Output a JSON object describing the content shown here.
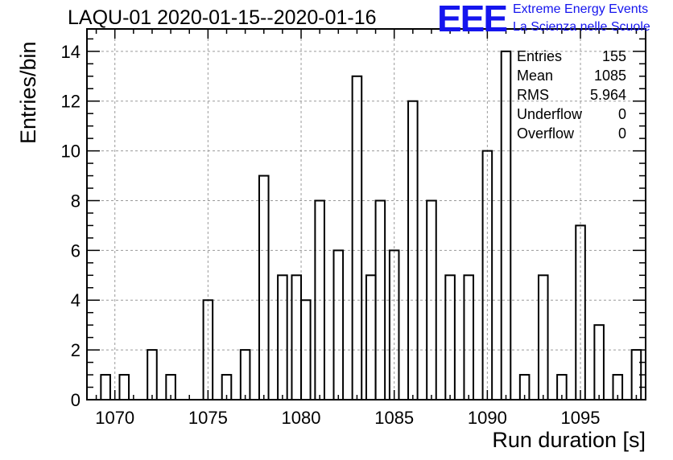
{
  "chart_data": {
    "type": "bar",
    "title": "LAQU-01 2020-01-15--2020-01-16",
    "xlabel": "Run duration [s]",
    "ylabel": "Entries/bin",
    "xlim": [
      1068.5,
      1098.5
    ],
    "ylim": [
      0,
      14.9
    ],
    "bin_width": 0.5,
    "grid": true,
    "x_ticks": [
      1070,
      1075,
      1080,
      1085,
      1090,
      1095
    ],
    "y_ticks": [
      0,
      2,
      4,
      6,
      8,
      10,
      12,
      14
    ],
    "bins": [
      {
        "x": 1069.5,
        "count": 1
      },
      {
        "x": 1070.5,
        "count": 1
      },
      {
        "x": 1072.0,
        "count": 2
      },
      {
        "x": 1073.0,
        "count": 1
      },
      {
        "x": 1075.0,
        "count": 4
      },
      {
        "x": 1076.0,
        "count": 1
      },
      {
        "x": 1077.0,
        "count": 2
      },
      {
        "x": 1078.0,
        "count": 9
      },
      {
        "x": 1079.0,
        "count": 5
      },
      {
        "x": 1079.75,
        "count": 5
      },
      {
        "x": 1080.25,
        "count": 4
      },
      {
        "x": 1081.0,
        "count": 8
      },
      {
        "x": 1082.0,
        "count": 6
      },
      {
        "x": 1083.0,
        "count": 13
      },
      {
        "x": 1083.75,
        "count": 5
      },
      {
        "x": 1084.25,
        "count": 8
      },
      {
        "x": 1085.0,
        "count": 6
      },
      {
        "x": 1086.0,
        "count": 12
      },
      {
        "x": 1087.0,
        "count": 8
      },
      {
        "x": 1088.0,
        "count": 5
      },
      {
        "x": 1089.0,
        "count": 5
      },
      {
        "x": 1090.0,
        "count": 10
      },
      {
        "x": 1091.0,
        "count": 14
      },
      {
        "x": 1092.0,
        "count": 1
      },
      {
        "x": 1093.0,
        "count": 5
      },
      {
        "x": 1094.0,
        "count": 1
      },
      {
        "x": 1095.0,
        "count": 7
      },
      {
        "x": 1096.0,
        "count": 3
      },
      {
        "x": 1097.0,
        "count": 1
      },
      {
        "x": 1098.0,
        "count": 2
      }
    ],
    "stats": [
      {
        "label": "Entries",
        "value": "155"
      },
      {
        "label": "Mean",
        "value": "1085"
      },
      {
        "label": "RMS",
        "value": "5.964"
      },
      {
        "label": "Underflow",
        "value": "0"
      },
      {
        "label": "Overflow",
        "value": "0"
      }
    ]
  },
  "logo": {
    "mark": "EEE",
    "line1": "Extreme Energy Events",
    "line2": "La Scienza nelle Scuole",
    "color": "#1515ee"
  },
  "colors": {
    "line": "#000000",
    "grid": "#9a9a9a"
  }
}
